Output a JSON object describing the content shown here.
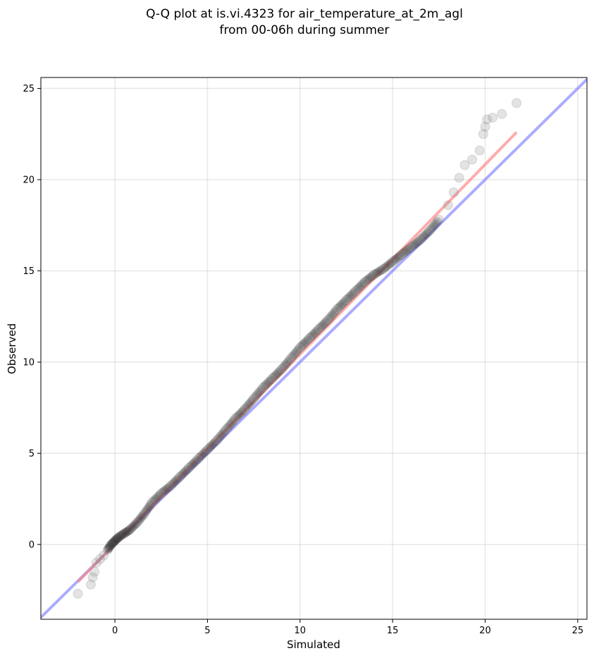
{
  "chart_data": {
    "type": "scatter",
    "title_lines": [
      "Q-Q plot at is.vi.4323 for air_temperature_at_2m_agl",
      "from 00-06h during summer"
    ],
    "xlabel": "Simulated",
    "ylabel": "Observed",
    "xlim": [
      -4,
      25.5
    ],
    "ylim": [
      -4.1,
      25.6
    ],
    "xticks": [
      0,
      5,
      10,
      15,
      20,
      25
    ],
    "yticks": [
      0,
      5,
      10,
      15,
      20,
      25
    ],
    "grid": true,
    "series": [
      {
        "kind": "quantile_points",
        "color": "#808080",
        "x": [
          -2.0,
          -1.3,
          -1.2,
          -1.1,
          -1.0,
          -0.8,
          -0.6,
          -0.4,
          -0.2,
          0.0,
          0.2,
          0.5,
          0.8,
          1.2,
          1.6,
          2.0,
          2.5,
          3.0,
          3.5,
          4.0,
          4.5,
          5.0,
          5.5,
          6.0,
          6.5,
          7.0,
          7.5,
          8.0,
          8.5,
          9.0,
          9.5,
          10.0,
          10.5,
          11.0,
          11.5,
          12.0,
          12.5,
          13.0,
          13.5,
          14.0,
          14.5,
          15.0,
          15.5,
          16.0,
          16.5,
          17.0,
          17.5,
          18.0,
          18.3,
          18.6,
          18.9,
          19.3,
          19.7,
          19.9,
          20.0,
          20.1,
          20.4,
          20.9,
          21.7
        ],
        "y": [
          -2.7,
          -2.2,
          -1.8,
          -1.5,
          -1.0,
          -0.8,
          -0.6,
          -0.3,
          0.0,
          0.2,
          0.4,
          0.6,
          0.8,
          1.2,
          1.7,
          2.3,
          2.8,
          3.2,
          3.7,
          4.2,
          4.7,
          5.2,
          5.7,
          6.3,
          6.9,
          7.4,
          8.0,
          8.6,
          9.1,
          9.6,
          10.2,
          10.8,
          11.3,
          11.8,
          12.3,
          12.9,
          13.4,
          13.9,
          14.4,
          14.8,
          15.1,
          15.5,
          15.9,
          16.3,
          16.7,
          17.2,
          17.8,
          18.6,
          19.3,
          20.1,
          20.8,
          21.1,
          21.6,
          22.5,
          22.9,
          23.3,
          23.4,
          23.6,
          24.2
        ]
      },
      {
        "kind": "fit_line",
        "color": "#ff8080",
        "x": [
          -2.0,
          21.7
        ],
        "y": [
          -2.05,
          22.6
        ]
      },
      {
        "kind": "reference_line",
        "color": "#8080ff",
        "x": [
          -4,
          25.5
        ],
        "y": [
          -4,
          25.5
        ]
      }
    ]
  }
}
